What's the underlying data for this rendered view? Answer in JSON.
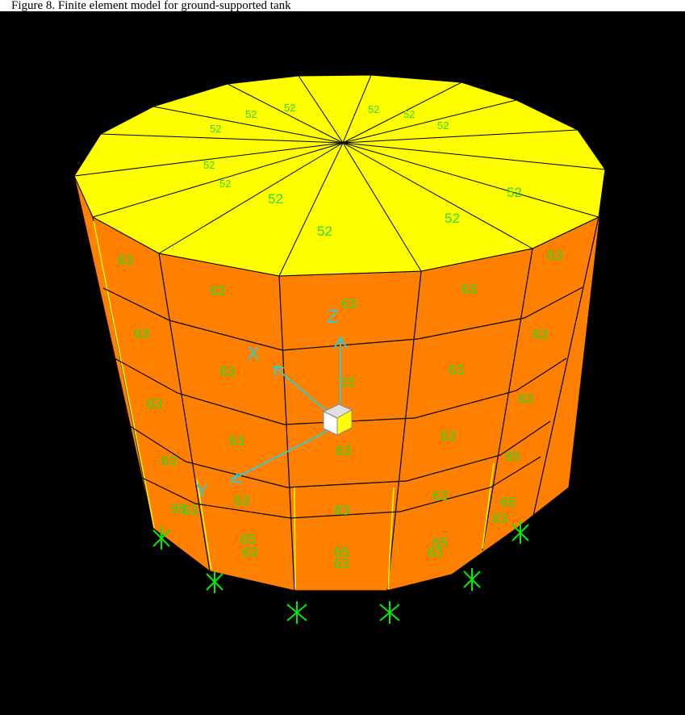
{
  "caption": "Figure 8. Finite element model for ground-supported tank",
  "colors": {
    "background": "#000000",
    "roof": "#ffff00",
    "wall": "#ff8000",
    "edge": "#000000",
    "labels": "#22dd22",
    "axes": "#33cccc",
    "supports": "#00ee00"
  },
  "axes": {
    "x": "X",
    "y": "Y",
    "z": "Z"
  },
  "roof_labels": [
    "52",
    "52",
    "52",
    "52",
    "52",
    "52",
    "52",
    "52",
    "52",
    "52",
    "52",
    "52"
  ],
  "wall_labels_top": [
    "63",
    "63",
    "63",
    "63",
    "63"
  ],
  "wall_labels_row2": [
    "63",
    "63",
    "63",
    "63",
    "63"
  ],
  "wall_labels_row3": [
    "63",
    "63",
    "63",
    "63",
    "63"
  ],
  "wall_labels_row4": [
    "63",
    "63",
    "63",
    "63",
    "65"
  ],
  "wall_labels_row5": [
    "65",
    "65",
    "65",
    "65",
    "65"
  ],
  "wall_labels_bottom": [
    "63",
    "63",
    "63",
    "63",
    "63"
  ]
}
